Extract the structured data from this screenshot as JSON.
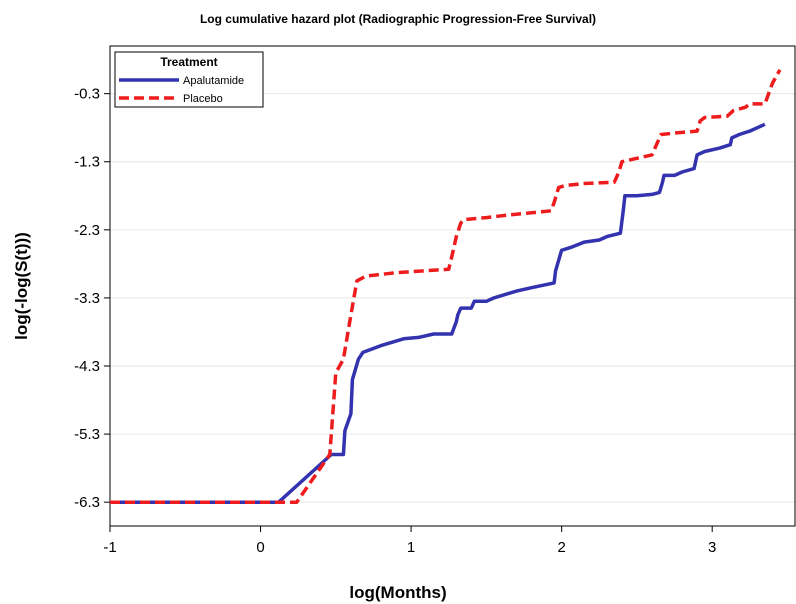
{
  "chart_data": {
    "type": "line",
    "title": "Log cumulative hazard plot  (Radiographic Progression-Free Survival)",
    "xlabel": "log(Months)",
    "ylabel": "log(-log(S(t)))",
    "xlim": [
      -1.0,
      3.55
    ],
    "ylim": [
      -6.65,
      0.4
    ],
    "xticks": [
      -1,
      0,
      1,
      2,
      3
    ],
    "xtick_labels": [
      "-1",
      "0",
      "1",
      "2",
      "3"
    ],
    "yticks": [
      -6.3,
      -5.3,
      -4.3,
      -3.3,
      -2.3,
      -1.3,
      -0.3
    ],
    "ytick_labels": [
      "-6.3",
      "-5.3",
      "-4.3",
      "-3.3",
      "-2.3",
      "-1.3",
      "-0.3"
    ],
    "grid": "horizontal",
    "legend": {
      "title": "Treatment",
      "placement": "top-left"
    },
    "series": [
      {
        "name": "Apalutamide",
        "color": "#3333b0",
        "style": "solid",
        "points": [
          [
            -1.0,
            -6.3
          ],
          [
            0.12,
            -6.3
          ],
          [
            0.47,
            -5.6
          ],
          [
            0.55,
            -5.6
          ],
          [
            0.56,
            -5.25
          ],
          [
            0.6,
            -5.0
          ],
          [
            0.61,
            -4.5
          ],
          [
            0.65,
            -4.2
          ],
          [
            0.68,
            -4.1
          ],
          [
            0.8,
            -4.0
          ],
          [
            0.95,
            -3.9
          ],
          [
            1.05,
            -3.88
          ],
          [
            1.15,
            -3.83
          ],
          [
            1.27,
            -3.83
          ],
          [
            1.3,
            -3.65
          ],
          [
            1.31,
            -3.55
          ],
          [
            1.33,
            -3.45
          ],
          [
            1.4,
            -3.45
          ],
          [
            1.42,
            -3.35
          ],
          [
            1.5,
            -3.35
          ],
          [
            1.55,
            -3.3
          ],
          [
            1.7,
            -3.2
          ],
          [
            1.8,
            -3.15
          ],
          [
            1.95,
            -3.08
          ],
          [
            1.96,
            -2.9
          ],
          [
            1.98,
            -2.75
          ],
          [
            2.0,
            -2.6
          ],
          [
            2.07,
            -2.55
          ],
          [
            2.15,
            -2.48
          ],
          [
            2.25,
            -2.45
          ],
          [
            2.3,
            -2.4
          ],
          [
            2.39,
            -2.35
          ],
          [
            2.41,
            -2.0
          ],
          [
            2.42,
            -1.8
          ],
          [
            2.5,
            -1.8
          ],
          [
            2.6,
            -1.78
          ],
          [
            2.65,
            -1.75
          ],
          [
            2.67,
            -1.6
          ],
          [
            2.68,
            -1.5
          ],
          [
            2.75,
            -1.5
          ],
          [
            2.8,
            -1.45
          ],
          [
            2.88,
            -1.4
          ],
          [
            2.9,
            -1.2
          ],
          [
            2.95,
            -1.15
          ],
          [
            3.05,
            -1.1
          ],
          [
            3.12,
            -1.05
          ],
          [
            3.13,
            -0.95
          ],
          [
            3.18,
            -0.9
          ],
          [
            3.25,
            -0.85
          ],
          [
            3.3,
            -0.8
          ],
          [
            3.35,
            -0.75
          ]
        ]
      },
      {
        "name": "Placebo",
        "color": "#ee1c1c",
        "style": "dashed",
        "points": [
          [
            -1.0,
            -6.3
          ],
          [
            0.24,
            -6.3
          ],
          [
            0.46,
            -5.6
          ],
          [
            0.5,
            -4.4
          ],
          [
            0.55,
            -4.2
          ],
          [
            0.6,
            -3.55
          ],
          [
            0.64,
            -3.05
          ],
          [
            0.7,
            -2.98
          ],
          [
            0.9,
            -2.93
          ],
          [
            1.1,
            -2.9
          ],
          [
            1.25,
            -2.88
          ],
          [
            1.27,
            -2.7
          ],
          [
            1.3,
            -2.4
          ],
          [
            1.33,
            -2.2
          ],
          [
            1.35,
            -2.15
          ],
          [
            1.5,
            -2.12
          ],
          [
            1.65,
            -2.08
          ],
          [
            1.8,
            -2.05
          ],
          [
            1.93,
            -2.02
          ],
          [
            1.95,
            -1.9
          ],
          [
            1.98,
            -1.68
          ],
          [
            2.02,
            -1.65
          ],
          [
            2.15,
            -1.62
          ],
          [
            2.35,
            -1.6
          ],
          [
            2.38,
            -1.45
          ],
          [
            2.4,
            -1.3
          ],
          [
            2.5,
            -1.25
          ],
          [
            2.6,
            -1.2
          ],
          [
            2.63,
            -1.05
          ],
          [
            2.66,
            -0.9
          ],
          [
            2.75,
            -0.88
          ],
          [
            2.9,
            -0.85
          ],
          [
            2.92,
            -0.7
          ],
          [
            2.95,
            -0.65
          ],
          [
            3.1,
            -0.63
          ],
          [
            3.14,
            -0.55
          ],
          [
            3.22,
            -0.5
          ],
          [
            3.25,
            -0.45
          ],
          [
            3.35,
            -0.45
          ],
          [
            3.4,
            -0.15
          ],
          [
            3.45,
            0.05
          ]
        ]
      }
    ]
  }
}
